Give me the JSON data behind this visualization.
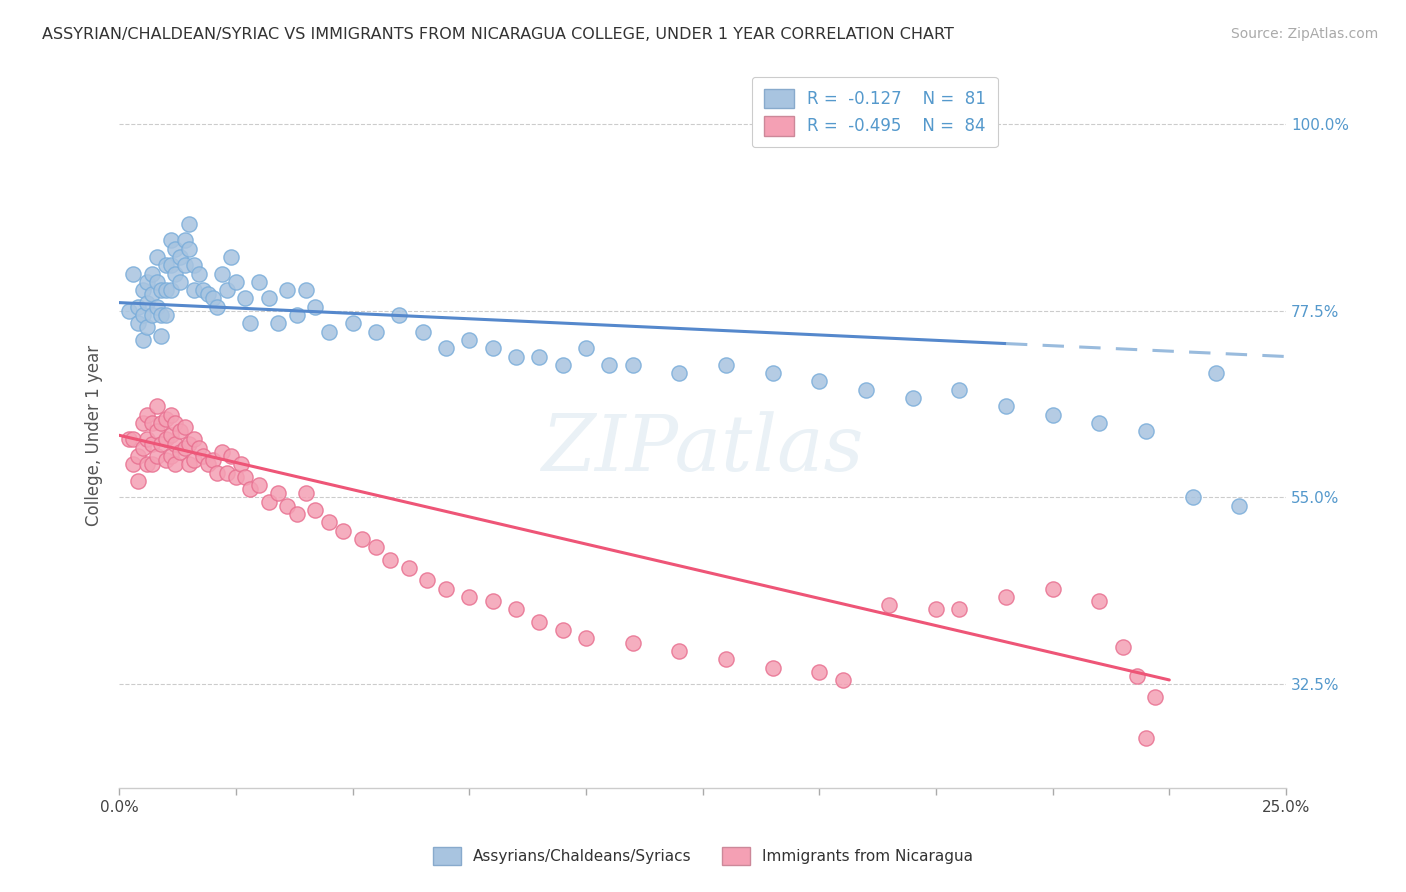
{
  "title": "ASSYRIAN/CHALDEAN/SYRIAC VS IMMIGRANTS FROM NICARAGUA COLLEGE, UNDER 1 YEAR CORRELATION CHART",
  "source": "Source: ZipAtlas.com",
  "ylabel": "College, Under 1 year",
  "xmin": 0.0,
  "xmax": 0.25,
  "ymin": 0.2,
  "ymax": 1.05,
  "yticks": [
    0.325,
    0.55,
    0.775,
    1.0
  ],
  "ytick_labels": [
    "32.5%",
    "55.0%",
    "77.5%",
    "100.0%"
  ],
  "color_blue": "#a8c4e0",
  "color_pink": "#f4a0b4",
  "line_blue": "#5588cc",
  "line_pink": "#ee5577",
  "line_dashed_blue": "#99bbdd",
  "watermark": "ZIPatlas",
  "blue_scatter_x": [
    0.002,
    0.003,
    0.004,
    0.004,
    0.005,
    0.005,
    0.005,
    0.006,
    0.006,
    0.006,
    0.007,
    0.007,
    0.007,
    0.008,
    0.008,
    0.008,
    0.009,
    0.009,
    0.009,
    0.01,
    0.01,
    0.01,
    0.011,
    0.011,
    0.011,
    0.012,
    0.012,
    0.013,
    0.013,
    0.014,
    0.014,
    0.015,
    0.015,
    0.016,
    0.016,
    0.017,
    0.018,
    0.019,
    0.02,
    0.021,
    0.022,
    0.023,
    0.024,
    0.025,
    0.027,
    0.028,
    0.03,
    0.032,
    0.034,
    0.036,
    0.038,
    0.04,
    0.042,
    0.045,
    0.05,
    0.055,
    0.06,
    0.065,
    0.07,
    0.075,
    0.08,
    0.085,
    0.09,
    0.095,
    0.1,
    0.105,
    0.11,
    0.12,
    0.13,
    0.14,
    0.15,
    0.16,
    0.17,
    0.18,
    0.19,
    0.2,
    0.21,
    0.22,
    0.23,
    0.235,
    0.24
  ],
  "blue_scatter_y": [
    0.775,
    0.82,
    0.78,
    0.76,
    0.8,
    0.77,
    0.74,
    0.81,
    0.785,
    0.755,
    0.82,
    0.795,
    0.77,
    0.84,
    0.81,
    0.78,
    0.8,
    0.77,
    0.745,
    0.83,
    0.8,
    0.77,
    0.86,
    0.83,
    0.8,
    0.85,
    0.82,
    0.84,
    0.81,
    0.86,
    0.83,
    0.88,
    0.85,
    0.83,
    0.8,
    0.82,
    0.8,
    0.795,
    0.79,
    0.78,
    0.82,
    0.8,
    0.84,
    0.81,
    0.79,
    0.76,
    0.81,
    0.79,
    0.76,
    0.8,
    0.77,
    0.8,
    0.78,
    0.75,
    0.76,
    0.75,
    0.77,
    0.75,
    0.73,
    0.74,
    0.73,
    0.72,
    0.72,
    0.71,
    0.73,
    0.71,
    0.71,
    0.7,
    0.71,
    0.7,
    0.69,
    0.68,
    0.67,
    0.68,
    0.66,
    0.65,
    0.64,
    0.63,
    0.55,
    0.7,
    0.54
  ],
  "pink_scatter_x": [
    0.002,
    0.003,
    0.003,
    0.004,
    0.004,
    0.005,
    0.005,
    0.006,
    0.006,
    0.006,
    0.007,
    0.007,
    0.007,
    0.008,
    0.008,
    0.008,
    0.009,
    0.009,
    0.01,
    0.01,
    0.01,
    0.011,
    0.011,
    0.011,
    0.012,
    0.012,
    0.012,
    0.013,
    0.013,
    0.014,
    0.014,
    0.015,
    0.015,
    0.016,
    0.016,
    0.017,
    0.018,
    0.019,
    0.02,
    0.021,
    0.022,
    0.023,
    0.024,
    0.025,
    0.026,
    0.027,
    0.028,
    0.03,
    0.032,
    0.034,
    0.036,
    0.038,
    0.04,
    0.042,
    0.045,
    0.048,
    0.052,
    0.055,
    0.058,
    0.062,
    0.066,
    0.07,
    0.075,
    0.08,
    0.085,
    0.09,
    0.095,
    0.1,
    0.11,
    0.12,
    0.13,
    0.14,
    0.15,
    0.155,
    0.165,
    0.175,
    0.18,
    0.19,
    0.2,
    0.21,
    0.215,
    0.218,
    0.22,
    0.222
  ],
  "pink_scatter_y": [
    0.62,
    0.59,
    0.62,
    0.6,
    0.57,
    0.64,
    0.61,
    0.65,
    0.62,
    0.59,
    0.64,
    0.615,
    0.59,
    0.66,
    0.63,
    0.6,
    0.64,
    0.615,
    0.645,
    0.62,
    0.595,
    0.65,
    0.625,
    0.6,
    0.64,
    0.615,
    0.59,
    0.63,
    0.605,
    0.635,
    0.61,
    0.615,
    0.59,
    0.62,
    0.595,
    0.61,
    0.6,
    0.59,
    0.595,
    0.58,
    0.605,
    0.58,
    0.6,
    0.575,
    0.59,
    0.575,
    0.56,
    0.565,
    0.545,
    0.555,
    0.54,
    0.53,
    0.555,
    0.535,
    0.52,
    0.51,
    0.5,
    0.49,
    0.475,
    0.465,
    0.45,
    0.44,
    0.43,
    0.425,
    0.415,
    0.4,
    0.39,
    0.38,
    0.375,
    0.365,
    0.355,
    0.345,
    0.34,
    0.33,
    0.42,
    0.415,
    0.415,
    0.43,
    0.44,
    0.425,
    0.37,
    0.335,
    0.26,
    0.31
  ],
  "blue_line_x0": 0.0,
  "blue_line_y0": 0.785,
  "blue_line_solid_x1": 0.19,
  "blue_line_x1": 0.25,
  "blue_line_y1": 0.72,
  "pink_line_x0": 0.0,
  "pink_line_y0": 0.625,
  "pink_line_x1": 0.225,
  "pink_line_y1": 0.33
}
